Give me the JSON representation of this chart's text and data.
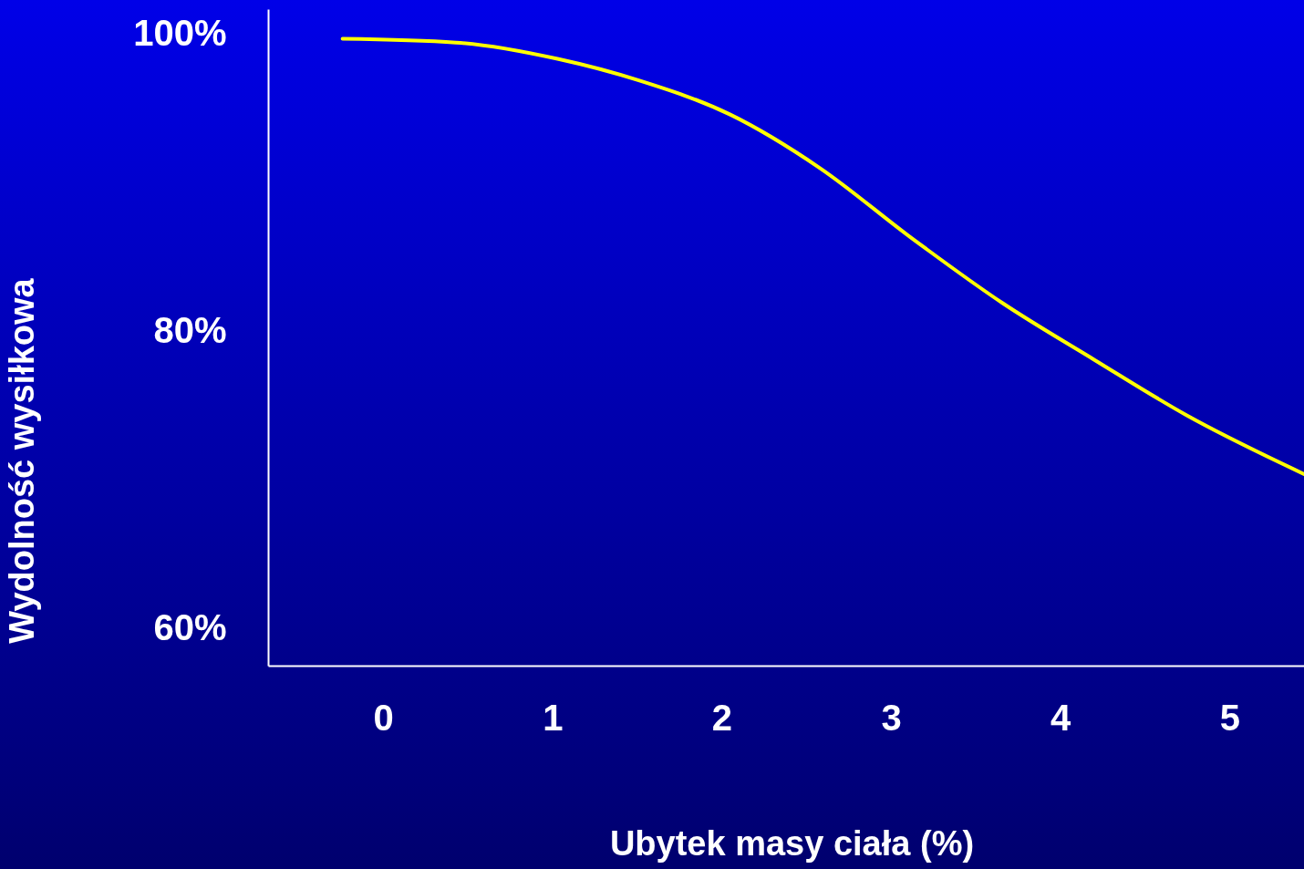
{
  "chart_data": {
    "type": "line",
    "xlabel": "Ubytek masy ciała (%)",
    "ylabel": "Wydolność wysiłkowa",
    "x": [
      -0.24,
      0.43,
      1.03,
      1.51,
      2.05,
      2.58,
      3.12,
      3.66,
      4.2,
      4.74,
      5.44
    ],
    "values": [
      99.7,
      99.45,
      98.35,
      96.9,
      94.6,
      91.0,
      86.3,
      81.9,
      78.1,
      74.4,
      70.4
    ],
    "color": "#ffff00",
    "line_style": "solid",
    "xlim": [
      -0.68,
      5.44
    ],
    "ylim": [
      57.5,
      101.7
    ],
    "xticks": [
      0,
      1,
      2,
      3,
      4,
      5
    ],
    "yticks": [
      {
        "value": 60,
        "label": "60%"
      },
      {
        "value": 80,
        "label": "80%"
      },
      {
        "value": 100,
        "label": "100%"
      }
    ]
  }
}
